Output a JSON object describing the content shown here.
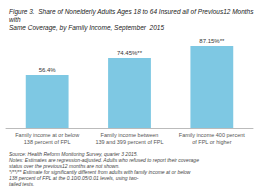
{
  "chart_data": {
    "type": "bar",
    "title": "Figure 3.  Share of Nonelderly Adults Ages 18 to 64 Insured all of Previous12 Months with\nSame Coverage, by Family Income, September  2015",
    "categories": [
      "Family income at or below\n138 percent of FPL",
      "Family income between\n139 and 399 percent of FPL",
      "Family income 400 percent\nof FPL or higher"
    ],
    "values": [
      56.4,
      74.45,
      87.15
    ],
    "value_labels": [
      "56.4%",
      "74.45%**",
      "87.15%**"
    ],
    "data_labels": true,
    "color": "#7EC8E3",
    "ylim": [
      0,
      100
    ],
    "tick_labels": "x",
    "grid": false,
    "annotations": [
      "Source: Health Reform Monitoring Survey, quarter 3 2015.",
      "Notes: Estimates are regression-adjusted. Adults who refused to report their coverage status over the previous12 months are not shown.",
      "*/**/** Estimate for significantly different from adults with family income at or below 138 percent of FPL at the 0.10/0.05/0.01 levels, using two-",
      "tailed tests."
    ]
  }
}
